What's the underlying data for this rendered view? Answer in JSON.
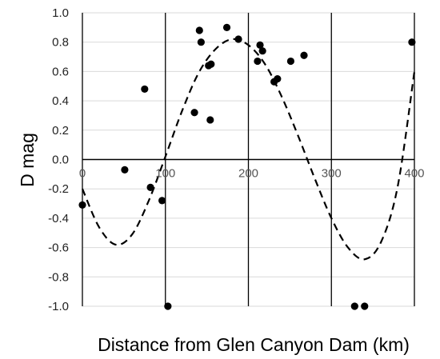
{
  "chart_data": {
    "type": "scatter",
    "title": "",
    "xlabel": "Distance from Glen Canyon Dam (km)",
    "ylabel": "D mag",
    "xlim": [
      0,
      400
    ],
    "ylim": [
      -1.0,
      1.0
    ],
    "x_ticks": [
      0,
      100,
      200,
      300,
      400
    ],
    "y_ticks": [
      1.0,
      0.8,
      0.6,
      0.4,
      0.2,
      0.0,
      -0.2,
      -0.4,
      -0.6,
      -0.8,
      -1.0
    ],
    "x_tick_labels": [
      "0",
      "100",
      "200",
      "300",
      "400"
    ],
    "y_tick_labels": [
      "1.0",
      "0.8",
      "0.6",
      "0.4",
      "0.2",
      "0.0",
      "-0.2",
      "-0.4",
      "-0.6",
      "-0.8",
      "-1.0"
    ],
    "grid": "vertical lines at x ticks",
    "legend": "none",
    "series": [
      {
        "kind": "scatter",
        "color": "#000000",
        "points": [
          {
            "x": 0,
            "y": -0.31
          },
          {
            "x": 51,
            "y": -0.07
          },
          {
            "x": 75,
            "y": 0.48
          },
          {
            "x": 82,
            "y": -0.19
          },
          {
            "x": 96,
            "y": -0.28
          },
          {
            "x": 103,
            "y": -1.0
          },
          {
            "x": 135,
            "y": 0.32
          },
          {
            "x": 141,
            "y": 0.88
          },
          {
            "x": 143,
            "y": 0.8
          },
          {
            "x": 152,
            "y": 0.64
          },
          {
            "x": 154,
            "y": 0.27
          },
          {
            "x": 155,
            "y": 0.65
          },
          {
            "x": 174,
            "y": 0.9
          },
          {
            "x": 188,
            "y": 0.82
          },
          {
            "x": 211,
            "y": 0.67
          },
          {
            "x": 214,
            "y": 0.78
          },
          {
            "x": 217,
            "y": 0.74
          },
          {
            "x": 231,
            "y": 0.53
          },
          {
            "x": 235,
            "y": 0.55
          },
          {
            "x": 251,
            "y": 0.67
          },
          {
            "x": 267,
            "y": 0.71
          },
          {
            "x": 328,
            "y": -1.0
          },
          {
            "x": 340,
            "y": -1.0
          },
          {
            "x": 397,
            "y": 0.8
          }
        ]
      },
      {
        "kind": "dashed-fit-curve",
        "color": "#000000",
        "points": [
          {
            "x": 0,
            "y": -0.2
          },
          {
            "x": 20,
            "y": -0.46
          },
          {
            "x": 40,
            "y": -0.58
          },
          {
            "x": 60,
            "y": -0.51
          },
          {
            "x": 80,
            "y": -0.28
          },
          {
            "x": 100,
            "y": 0.02
          },
          {
            "x": 120,
            "y": 0.33
          },
          {
            "x": 140,
            "y": 0.59
          },
          {
            "x": 160,
            "y": 0.75
          },
          {
            "x": 180,
            "y": 0.82
          },
          {
            "x": 200,
            "y": 0.78
          },
          {
            "x": 220,
            "y": 0.65
          },
          {
            "x": 240,
            "y": 0.43
          },
          {
            "x": 260,
            "y": 0.16
          },
          {
            "x": 280,
            "y": -0.13
          },
          {
            "x": 300,
            "y": -0.4
          },
          {
            "x": 320,
            "y": -0.6
          },
          {
            "x": 340,
            "y": -0.68
          },
          {
            "x": 360,
            "y": -0.56
          },
          {
            "x": 380,
            "y": -0.18
          },
          {
            "x": 400,
            "y": 0.6
          }
        ]
      }
    ]
  }
}
